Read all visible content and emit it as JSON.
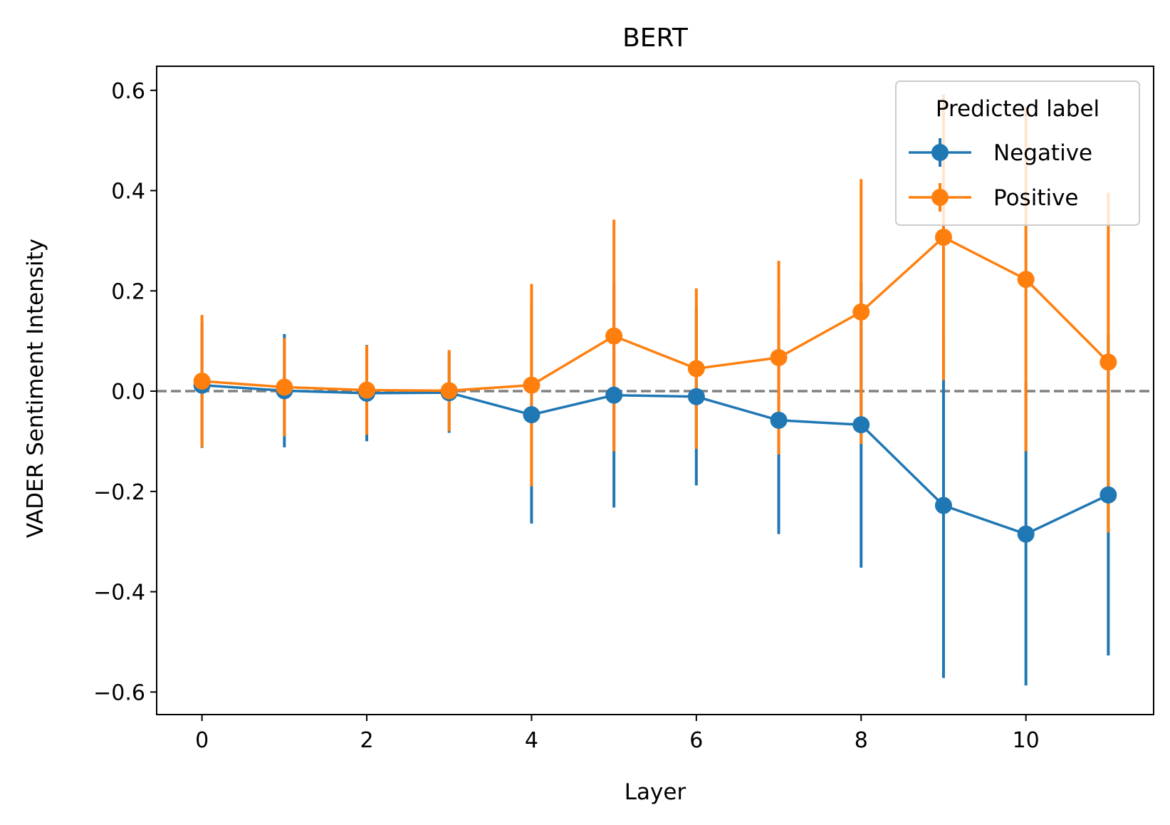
{
  "chart_data": {
    "type": "line",
    "title": "BERT",
    "xlabel": "Layer",
    "ylabel": "VADER Sentiment Intensity",
    "xlim": [
      -0.55,
      11.55
    ],
    "ylim": [
      -0.645,
      0.648
    ],
    "xticks": [
      0,
      2,
      4,
      6,
      8,
      10
    ],
    "xtick_labels": [
      "0",
      "2",
      "4",
      "6",
      "8",
      "10"
    ],
    "yticks": [
      -0.6,
      -0.4,
      -0.2,
      0.0,
      0.2,
      0.4,
      0.6
    ],
    "ytick_labels": [
      "−0.6",
      "−0.4",
      "−0.2",
      "0.0",
      "0.2",
      "0.4",
      "0.6"
    ],
    "reference_line": {
      "y": 0.0,
      "style": "dashed",
      "color": "#808080"
    },
    "grid": false,
    "legend": {
      "title": "Predicted label",
      "placement": "top-right"
    },
    "x": [
      0,
      1,
      2,
      3,
      4,
      5,
      6,
      7,
      8,
      9,
      10,
      11
    ],
    "series": [
      {
        "name": "Negative",
        "color": "#1f77b4",
        "values": [
          0.012,
          0.001,
          -0.004,
          -0.003,
          -0.047,
          -0.008,
          -0.011,
          -0.058,
          -0.067,
          -0.228,
          -0.285,
          -0.207
        ],
        "err_low": [
          -0.113,
          -0.112,
          -0.1,
          -0.083,
          -0.264,
          -0.232,
          -0.188,
          -0.285,
          -0.352,
          -0.572,
          -0.587,
          -0.527
        ],
        "err_high": [
          0.138,
          0.114,
          0.092,
          0.077,
          0.17,
          0.216,
          0.166,
          0.169,
          0.218,
          0.116,
          0.017,
          0.113
        ]
      },
      {
        "name": "Positive",
        "color": "#ff7f0e",
        "values": [
          0.02,
          0.008,
          0.002,
          0.001,
          0.012,
          0.11,
          0.045,
          0.067,
          0.158,
          0.307,
          0.223,
          0.058
        ],
        "err_low": [
          -0.112,
          -0.09,
          -0.087,
          -0.08,
          -0.19,
          -0.12,
          -0.115,
          -0.126,
          -0.105,
          0.022,
          -0.12,
          -0.282
        ],
        "err_high": [
          0.152,
          0.106,
          0.091,
          0.082,
          0.214,
          0.342,
          0.205,
          0.26,
          0.423,
          0.592,
          0.566,
          0.396
        ]
      }
    ]
  }
}
